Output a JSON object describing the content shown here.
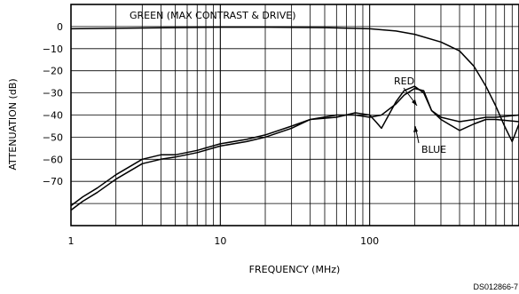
{
  "chart_data": {
    "type": "line",
    "title": "",
    "xlabel": "FREQUENCY (MHz)",
    "ylabel": "ATTENUATION (dB)",
    "x_scale": "log",
    "xlim": [
      1,
      1000
    ],
    "ylim": [
      -90,
      10
    ],
    "grid": true,
    "x_tick_labels": [
      {
        "value": 1,
        "label": "1"
      },
      {
        "value": 10,
        "label": "10"
      },
      {
        "value": 100,
        "label": "100"
      }
    ],
    "y_tick_labels": [
      {
        "value": 0,
        "label": "0"
      },
      {
        "value": -10,
        "label": "−10"
      },
      {
        "value": -20,
        "label": "−20"
      },
      {
        "value": -30,
        "label": "−30"
      },
      {
        "value": -40,
        "label": "−40"
      },
      {
        "value": -50,
        "label": "−50"
      },
      {
        "value": -60,
        "label": "−60"
      },
      {
        "value": -70,
        "label": "−70"
      }
    ],
    "series": [
      {
        "name": "GREEN (MAX CONTRAST & DRIVE)",
        "x": [
          1,
          2,
          5,
          10,
          20,
          50,
          100,
          150,
          200,
          300,
          400,
          500,
          600,
          700,
          800,
          900,
          1000
        ],
        "y": [
          -1,
          -0.8,
          -0.5,
          -0.3,
          -0.3,
          -0.5,
          -1,
          -2,
          -3.5,
          -7,
          -11,
          -18,
          -27,
          -36,
          -45,
          -52,
          -44
        ]
      },
      {
        "name": "RED",
        "x": [
          1,
          1.2,
          1.5,
          2,
          3,
          4,
          5,
          7,
          10,
          15,
          20,
          30,
          40,
          60,
          80,
          100,
          120,
          150,
          170,
          200,
          230,
          260,
          300,
          400,
          500,
          600,
          700,
          1000
        ],
        "y": [
          -81,
          -77,
          -73,
          -67,
          -60,
          -58,
          -58,
          -56,
          -53,
          -51,
          -49,
          -45,
          -42,
          -40,
          -40,
          -41,
          -40,
          -35,
          -31,
          -28,
          -29,
          -38,
          -41,
          -43,
          -42,
          -41,
          -41,
          -40
        ]
      },
      {
        "name": "BLUE",
        "x": [
          1,
          1.2,
          1.5,
          2,
          3,
          4,
          5,
          7,
          10,
          15,
          20,
          30,
          40,
          60,
          80,
          100,
          110,
          120,
          150,
          170,
          200,
          230,
          260,
          300,
          400,
          500,
          600,
          700,
          1000
        ],
        "y": [
          -83,
          -79,
          -75,
          -69,
          -62,
          -60,
          -59,
          -57,
          -54,
          -52,
          -50,
          -46,
          -42,
          -41,
          -39,
          -40,
          -43,
          -46,
          -34,
          -29,
          -27,
          -30,
          -38,
          -42,
          -47,
          -44,
          -42,
          -42,
          -43
        ]
      }
    ],
    "annotations": {
      "green": "GREEN (MAX CONTRAST & DRIVE)",
      "red": "RED",
      "blue": "BLUE"
    },
    "figure_code": "DS012866-7"
  }
}
